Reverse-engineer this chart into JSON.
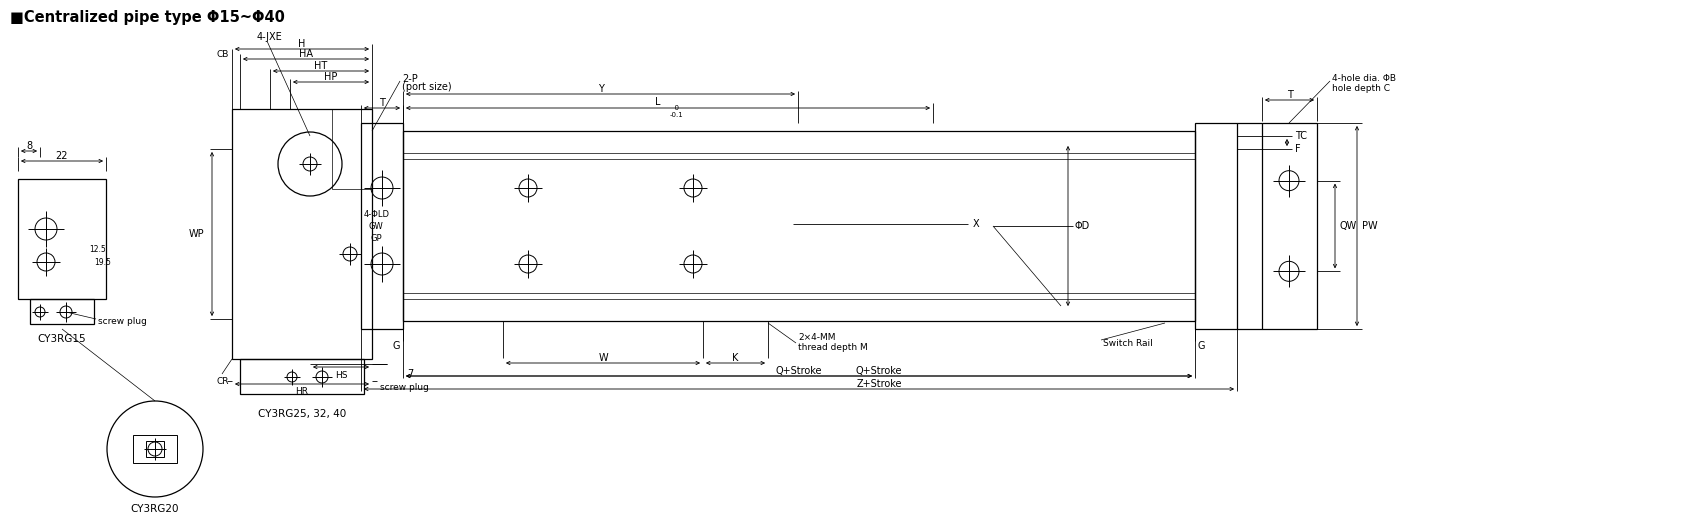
{
  "bg_color": "#ffffff",
  "line_color": "#000000",
  "fig_width": 17.08,
  "fig_height": 5.29,
  "title": "■Centralized pipe type Φ15~Φ40",
  "labels": {
    "22": "22",
    "8": "8",
    "12_5": "12.5",
    "19_5": "19.5",
    "WP": "WP",
    "4JXE": "4-JXE",
    "2P": "2-P",
    "port_size": "(port size)",
    "screw_plug": "screw plug",
    "CY3RG15": "CY3RG15",
    "CY3RG20": "CY3RG20",
    "CY3RG25": "CY3RG25, 32, 40",
    "4LD": "4-ΦLD",
    "GW": "GW",
    "GP": "GP",
    "screw_plug2": "screw plug",
    "7": "7",
    "H": "H",
    "CB": "CB",
    "HA": "HA",
    "HT": "HT",
    "HP": "HP",
    "HS": "HS",
    "HR": "HR",
    "CR": "CR",
    "T": "T",
    "Y": "Y",
    "L": "L",
    "L_tol": "  0\n-0.1",
    "TC": "TC",
    "F": "F",
    "X": "X",
    "phiD": "ΦD",
    "W": "W",
    "K": "K",
    "G": "G",
    "Q_stroke": "Q+Stroke",
    "Z_stroke": "Z+Stroke",
    "thread": "2×4-MM\nthread depth M",
    "switch_rail": "Switch Rail",
    "4hole": "4-hole dia. ΦB\nhole depth C",
    "QW": "QW",
    "PW": "PW"
  }
}
